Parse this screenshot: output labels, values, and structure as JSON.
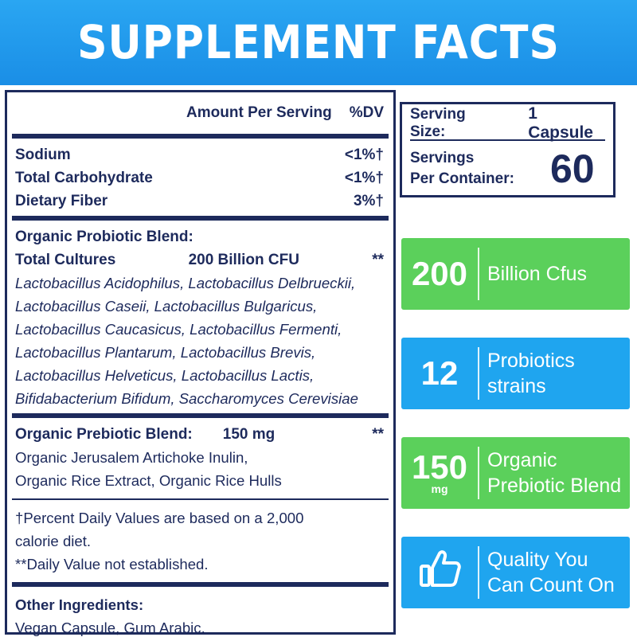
{
  "banner": {
    "title": "SUPPLEMENT FACTS"
  },
  "facts": {
    "header": {
      "amount": "Amount Per Serving",
      "dv": "%DV"
    },
    "nutrients": [
      {
        "name": "Sodium",
        "dv": "<1%†"
      },
      {
        "name": "Total Carbohydrate",
        "dv": "<1%†"
      },
      {
        "name": "Dietary Fiber",
        "dv": "3%†"
      }
    ],
    "probiotic": {
      "title": "Organic Probiotic Blend:",
      "cultures_label": "Total Cultures",
      "cultures_amount": "200 Billion CFU",
      "cultures_dv": "**",
      "strains": [
        "Lactobacillus Acidophilus, Lactobacillus Delbrueckii,",
        "Lactobacillus Caseii, Lactobacillus Bulgaricus,",
        "Lactobacillus Caucasicus, Lactobacillus Fermenti,",
        "Lactobacillus Plantarum, Lactobacillus Brevis,",
        "Lactobacillus Helveticus, Lactobacillus Lactis,",
        "Bifidabacterium Bifidum, Saccharomyces Cerevisiae"
      ]
    },
    "prebiotic": {
      "title": "Organic Prebiotic Blend:",
      "amount": "150 mg",
      "dv": "**",
      "lines": [
        "Organic Jerusalem Artichoke Inulin,",
        "Organic Rice Extract, Organic Rice Hulls"
      ]
    },
    "footnotes": [
      "†Percent Daily Values are based on a 2,000",
      "calorie diet.",
      "**Daily Value not established."
    ],
    "other": {
      "title": "Other Ingredients:",
      "text": "Vegan Capsule, Gum Arabic."
    }
  },
  "serving": {
    "size_label": "Serving Size:",
    "size_value": "1 Capsule",
    "per_container_label_1": "Servings",
    "per_container_label_2": "Per Container:",
    "per_container_value": "60"
  },
  "cards": [
    {
      "number": "200",
      "unit": "",
      "text_1": "Billion Cfus",
      "text_2": "",
      "color": "#5bd05b"
    },
    {
      "number": "12",
      "unit": "",
      "text_1": "Probiotics",
      "text_2": "strains",
      "color": "#1fa5ef"
    },
    {
      "number": "150",
      "unit": "mg",
      "text_1": "Organic",
      "text_2": "Prebiotic Blend",
      "color": "#5bd05b"
    },
    {
      "icon": "thumbs-up-icon",
      "text_1": "Quality You",
      "text_2": "Can Count On",
      "color": "#1fa5ef"
    }
  ]
}
